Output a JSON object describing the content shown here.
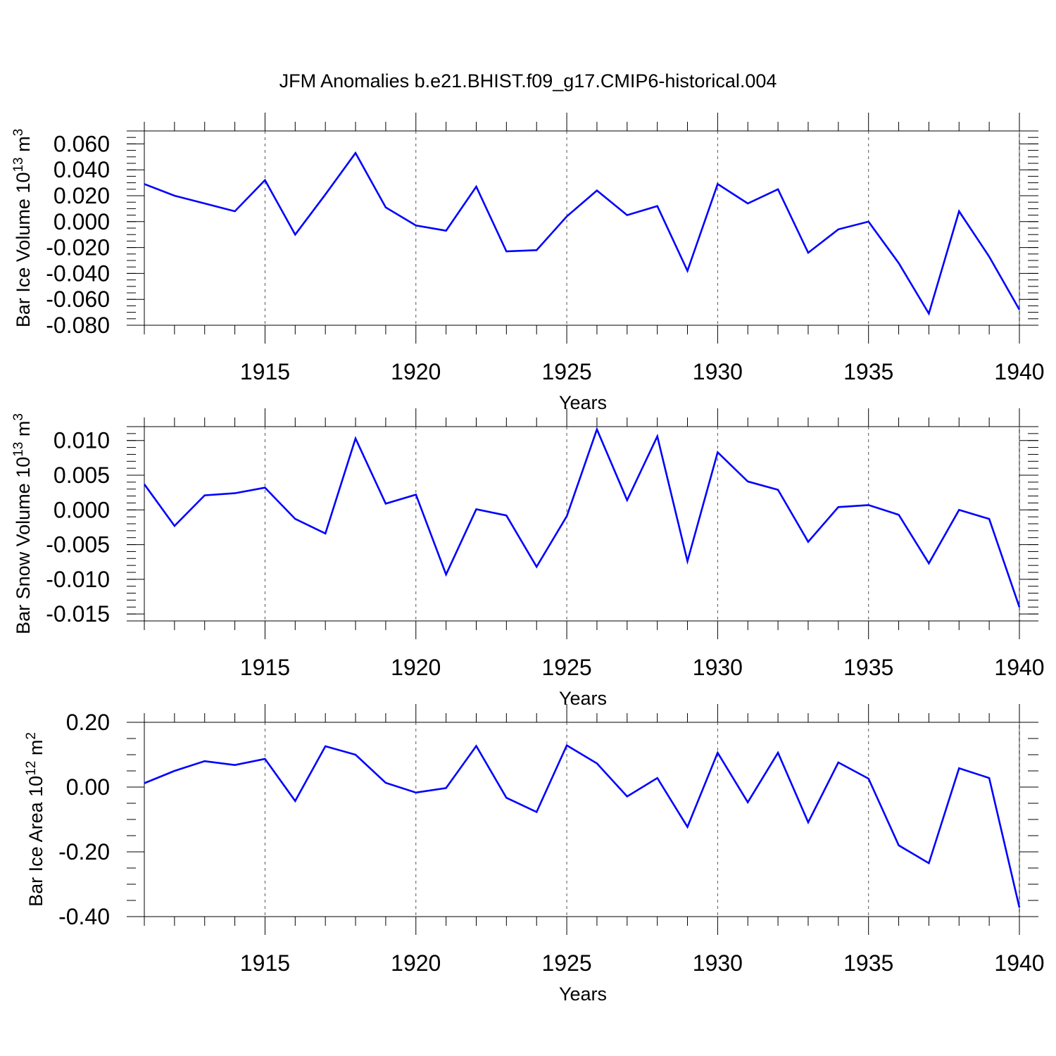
{
  "title": "JFM Anomalies b.e21.BHIST.f09_g17.CMIP6-historical.004",
  "line_color": "#0000ff",
  "chart_data": [
    {
      "type": "line",
      "ylabel": {
        "prefix": "Bar Ice Volume 10",
        "exp": "13",
        "unit": " m",
        "unit_exp": "3"
      },
      "xlabel": "Years",
      "xlim": [
        1911,
        1940
      ],
      "ylim": [
        -0.08,
        0.07
      ],
      "x_ticks": [
        "1915",
        "1920",
        "1925",
        "1930",
        "1935",
        "1940"
      ],
      "y_ticks": [
        {
          "v": 0.06,
          "label": "0.060"
        },
        {
          "v": 0.04,
          "label": "0.040"
        },
        {
          "v": 0.02,
          "label": "0.020"
        },
        {
          "v": 0.0,
          "label": "0.000"
        },
        {
          "v": -0.02,
          "label": "-0.020"
        },
        {
          "v": -0.04,
          "label": "-0.040"
        },
        {
          "v": -0.06,
          "label": "-0.060"
        },
        {
          "v": -0.08,
          "label": "-0.080"
        }
      ],
      "y_minor_step": 0.005,
      "grid": "dashed vertical lines at labeled years",
      "series": [
        {
          "x": [
            1911,
            1912,
            1913,
            1914,
            1915,
            1916,
            1917,
            1918,
            1919,
            1920,
            1921,
            1922,
            1923,
            1924,
            1925,
            1926,
            1927,
            1928,
            1929,
            1930,
            1931,
            1932,
            1933,
            1934,
            1935,
            1936,
            1937,
            1938,
            1939,
            1940
          ],
          "values": [
            0.029,
            0.02,
            0.014,
            0.008,
            0.032,
            -0.01,
            0.021,
            0.053,
            0.011,
            -0.003,
            -0.007,
            0.027,
            -0.023,
            -0.022,
            0.004,
            0.024,
            0.005,
            0.012,
            -0.038,
            0.029,
            0.014,
            0.025,
            -0.024,
            -0.006,
            0.0,
            -0.032,
            -0.071,
            0.008,
            -0.027,
            -0.068
          ]
        }
      ]
    },
    {
      "type": "line",
      "ylabel": {
        "prefix": "Bar Snow Volume 10",
        "exp": "13",
        "unit": " m",
        "unit_exp": "3"
      },
      "xlabel": "Years",
      "xlim": [
        1911,
        1940
      ],
      "ylim": [
        -0.016,
        0.012
      ],
      "x_ticks": [
        "1915",
        "1920",
        "1925",
        "1930",
        "1935",
        "1940"
      ],
      "y_ticks": [
        {
          "v": 0.01,
          "label": "0.010"
        },
        {
          "v": 0.005,
          "label": "0.005"
        },
        {
          "v": 0.0,
          "label": "0.000"
        },
        {
          "v": -0.005,
          "label": "-0.005"
        },
        {
          "v": -0.01,
          "label": "-0.010"
        },
        {
          "v": -0.015,
          "label": "-0.015"
        }
      ],
      "y_minor_step": 0.001,
      "grid": "dashed vertical lines at labeled years",
      "series": [
        {
          "x": [
            1911,
            1912,
            1913,
            1914,
            1915,
            1916,
            1917,
            1918,
            1919,
            1920,
            1921,
            1922,
            1923,
            1924,
            1925,
            1926,
            1927,
            1928,
            1929,
            1930,
            1931,
            1932,
            1933,
            1934,
            1935,
            1936,
            1937,
            1938,
            1939,
            1940
          ],
          "values": [
            0.0037,
            -0.0023,
            0.0021,
            0.0024,
            0.0032,
            -0.0013,
            -0.0034,
            0.0103,
            0.0009,
            0.0022,
            -0.0093,
            0.0001,
            -0.0008,
            -0.0082,
            -0.0009,
            0.0116,
            0.0014,
            0.0106,
            -0.0074,
            0.0083,
            0.0041,
            0.0029,
            -0.0046,
            0.0004,
            0.0007,
            -0.0007,
            -0.0077,
            0.0,
            -0.0013,
            -0.014
          ]
        }
      ]
    },
    {
      "type": "line",
      "ylabel": {
        "prefix": "Bar Ice Area 10",
        "exp": "12",
        "unit": " m",
        "unit_exp": "2"
      },
      "xlabel": "Years",
      "xlim": [
        1911,
        1940
      ],
      "ylim": [
        -0.4,
        0.2
      ],
      "x_ticks": [
        "1915",
        "1920",
        "1925",
        "1930",
        "1935",
        "1940"
      ],
      "y_ticks": [
        {
          "v": 0.2,
          "label": "0.20"
        },
        {
          "v": 0.0,
          "label": "0.00"
        },
        {
          "v": -0.2,
          "label": "-0.20"
        },
        {
          "v": -0.4,
          "label": "-0.40"
        }
      ],
      "y_minor_step": 0.05,
      "grid": "dashed vertical lines at labeled years",
      "series": [
        {
          "x": [
            1911,
            1912,
            1913,
            1914,
            1915,
            1916,
            1917,
            1918,
            1919,
            1920,
            1921,
            1922,
            1923,
            1924,
            1925,
            1926,
            1927,
            1928,
            1929,
            1930,
            1931,
            1932,
            1933,
            1934,
            1935,
            1936,
            1937,
            1938,
            1939,
            1940
          ],
          "values": [
            0.012,
            0.05,
            0.08,
            0.068,
            0.087,
            -0.043,
            0.126,
            0.1,
            0.013,
            -0.017,
            -0.003,
            0.127,
            -0.033,
            -0.077,
            0.129,
            0.073,
            -0.029,
            0.028,
            -0.123,
            0.106,
            -0.047,
            0.106,
            -0.109,
            0.076,
            0.026,
            -0.18,
            -0.235,
            0.058,
            0.028,
            -0.372
          ]
        }
      ]
    }
  ]
}
